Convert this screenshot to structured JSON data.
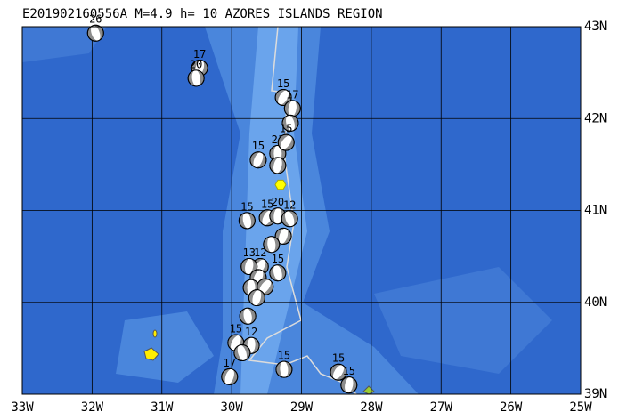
{
  "title": "E201902160556A M=4.9 h= 10 AZORES ISLANDS REGION",
  "xlim": [
    -33,
    -25
  ],
  "ylim": [
    39,
    43
  ],
  "xticks": [
    {
      "value": -33,
      "label": "33W"
    },
    {
      "value": -32,
      "label": "32W"
    },
    {
      "value": -31,
      "label": "31W"
    },
    {
      "value": -30,
      "label": "30W"
    },
    {
      "value": -29,
      "label": "29W"
    },
    {
      "value": -28,
      "label": "28W"
    },
    {
      "value": -27,
      "label": "27W"
    },
    {
      "value": -26,
      "label": "26W"
    },
    {
      "value": -25,
      "label": "25W"
    }
  ],
  "yticks": [
    {
      "value": 43,
      "label": "43N"
    },
    {
      "value": 42,
      "label": "42N"
    },
    {
      "value": 41,
      "label": "41N"
    },
    {
      "value": 40,
      "label": "40N"
    },
    {
      "value": 39,
      "label": "39N"
    }
  ],
  "epicenter": {
    "lon": -29.3,
    "lat": 41.28
  },
  "events": [
    {
      "lon": -31.95,
      "lat": 42.93,
      "depth": 26
    },
    {
      "lon": -30.46,
      "lat": 42.55,
      "depth": 17
    },
    {
      "lon": -30.51,
      "lat": 42.44,
      "depth": 20
    },
    {
      "lon": -29.26,
      "lat": 42.23,
      "depth": 15
    },
    {
      "lon": -29.13,
      "lat": 42.11,
      "depth": 17
    },
    {
      "lon": -29.16,
      "lat": 41.95,
      "depth": null
    },
    {
      "lon": -29.62,
      "lat": 41.55,
      "depth": 15
    },
    {
      "lon": -29.34,
      "lat": 41.62,
      "depth": 21
    },
    {
      "lon": -29.22,
      "lat": 41.74,
      "depth": 15
    },
    {
      "lon": -29.34,
      "lat": 41.49,
      "depth": null
    },
    {
      "lon": -29.78,
      "lat": 40.89,
      "depth": 15
    },
    {
      "lon": -29.49,
      "lat": 40.92,
      "depth": 15
    },
    {
      "lon": -29.34,
      "lat": 40.94,
      "depth": 20
    },
    {
      "lon": -29.17,
      "lat": 40.91,
      "depth": 12
    },
    {
      "lon": -29.26,
      "lat": 40.72,
      "depth": null
    },
    {
      "lon": -29.43,
      "lat": 40.63,
      "depth": null
    },
    {
      "lon": -29.59,
      "lat": 40.39,
      "depth": 12
    },
    {
      "lon": -29.75,
      "lat": 40.39,
      "depth": 13
    },
    {
      "lon": -29.34,
      "lat": 40.32,
      "depth": 15
    },
    {
      "lon": -29.62,
      "lat": 40.27,
      "depth": null
    },
    {
      "lon": -29.72,
      "lat": 40.16,
      "depth": null
    },
    {
      "lon": -29.52,
      "lat": 40.17,
      "depth": null
    },
    {
      "lon": -29.64,
      "lat": 40.05,
      "depth": null
    },
    {
      "lon": -29.77,
      "lat": 39.85,
      "depth": null
    },
    {
      "lon": -29.94,
      "lat": 39.56,
      "depth": 15
    },
    {
      "lon": -29.72,
      "lat": 39.53,
      "depth": 12
    },
    {
      "lon": -29.85,
      "lat": 39.45,
      "depth": null
    },
    {
      "lon": -30.03,
      "lat": 39.19,
      "depth": 17
    },
    {
      "lon": -29.25,
      "lat": 39.27,
      "depth": 15
    },
    {
      "lon": -28.47,
      "lat": 39.24,
      "depth": 15
    },
    {
      "lon": -28.32,
      "lat": 39.1,
      "depth": 15
    }
  ]
}
